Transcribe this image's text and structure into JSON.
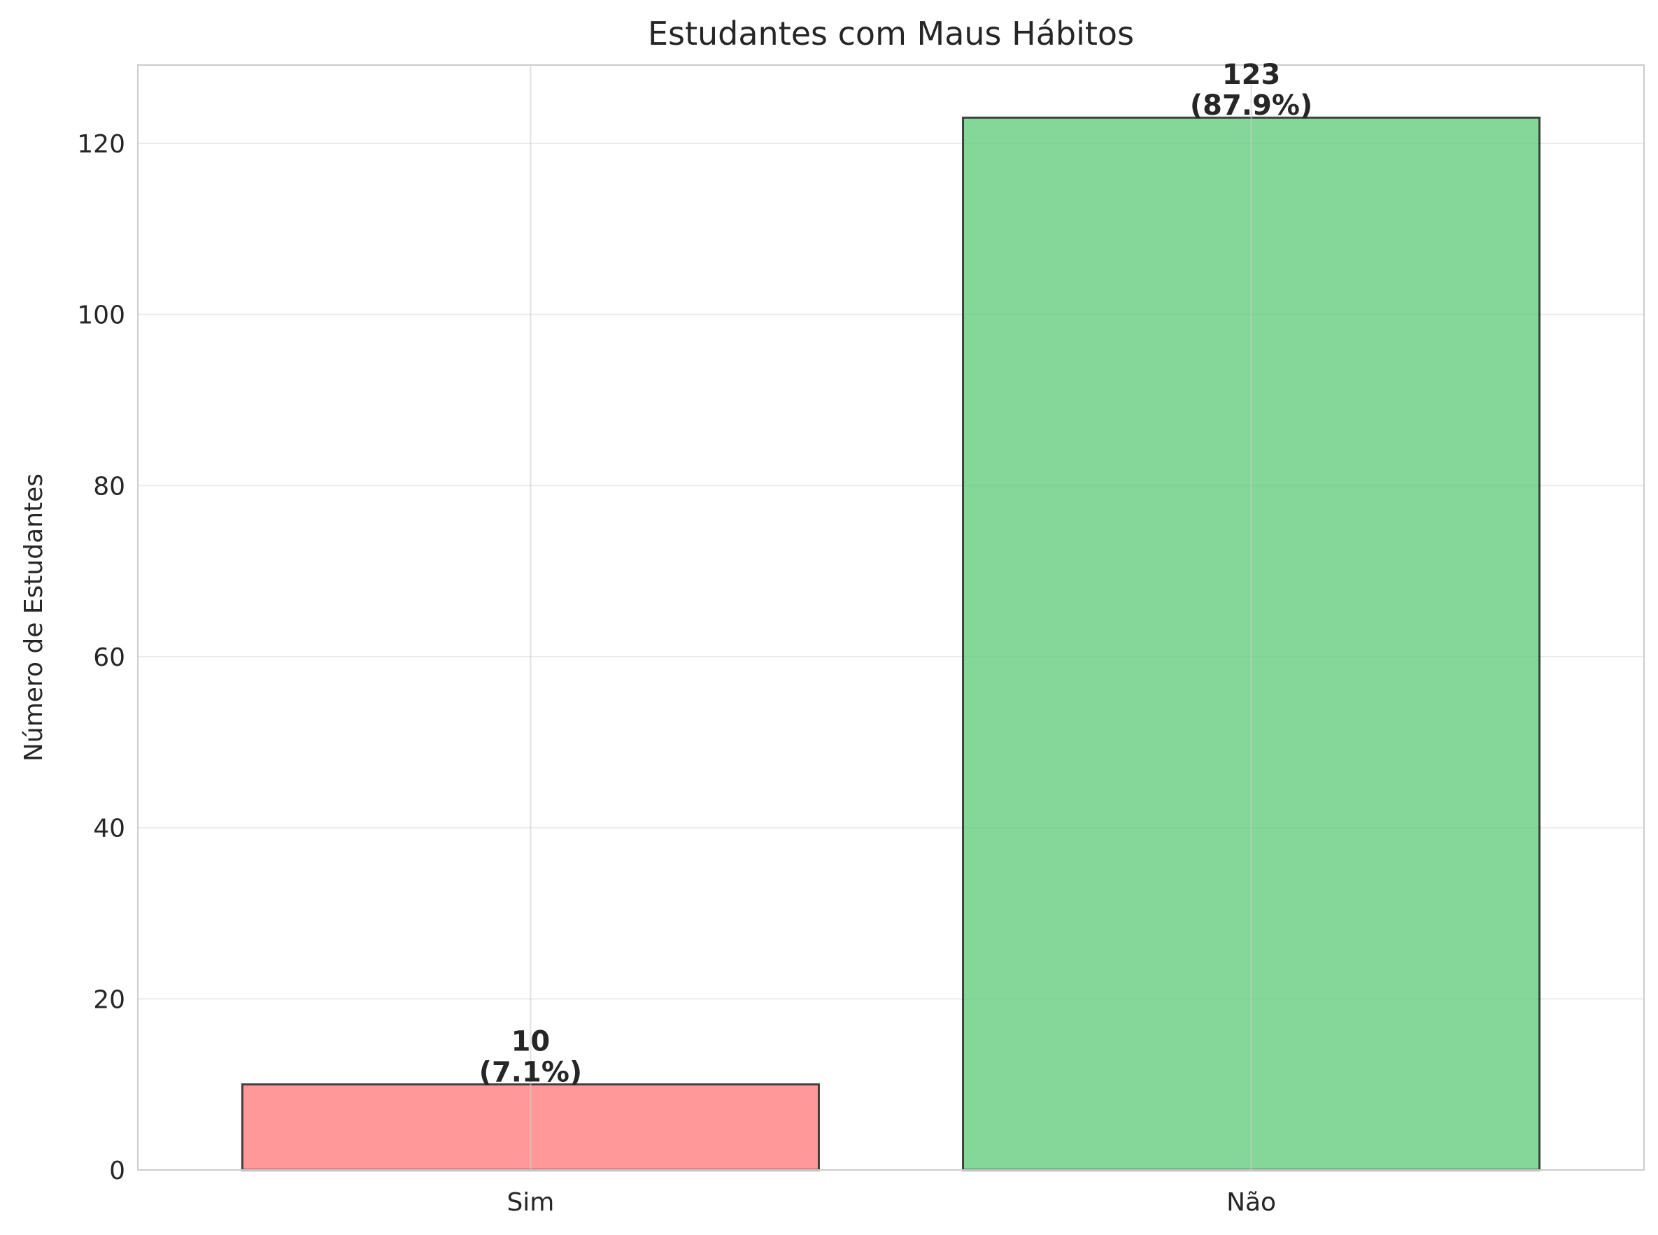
{
  "chart_data": {
    "type": "bar",
    "title": "Estudantes com Maus Hábitos",
    "xlabel": "",
    "ylabel": "Número de Estudantes",
    "categories": [
      "Sim",
      "Não"
    ],
    "values": [
      10,
      123
    ],
    "data_labels": [
      [
        "10",
        "(7.1%)"
      ],
      [
        "123",
        "(87.9%)"
      ]
    ],
    "bar_colors": [
      "#ff8080",
      "#66cc80"
    ],
    "ylim": [
      0,
      129.15
    ],
    "yticks": [
      0,
      20,
      40,
      60,
      80,
      100,
      120
    ],
    "grid": true,
    "legend": "none"
  }
}
